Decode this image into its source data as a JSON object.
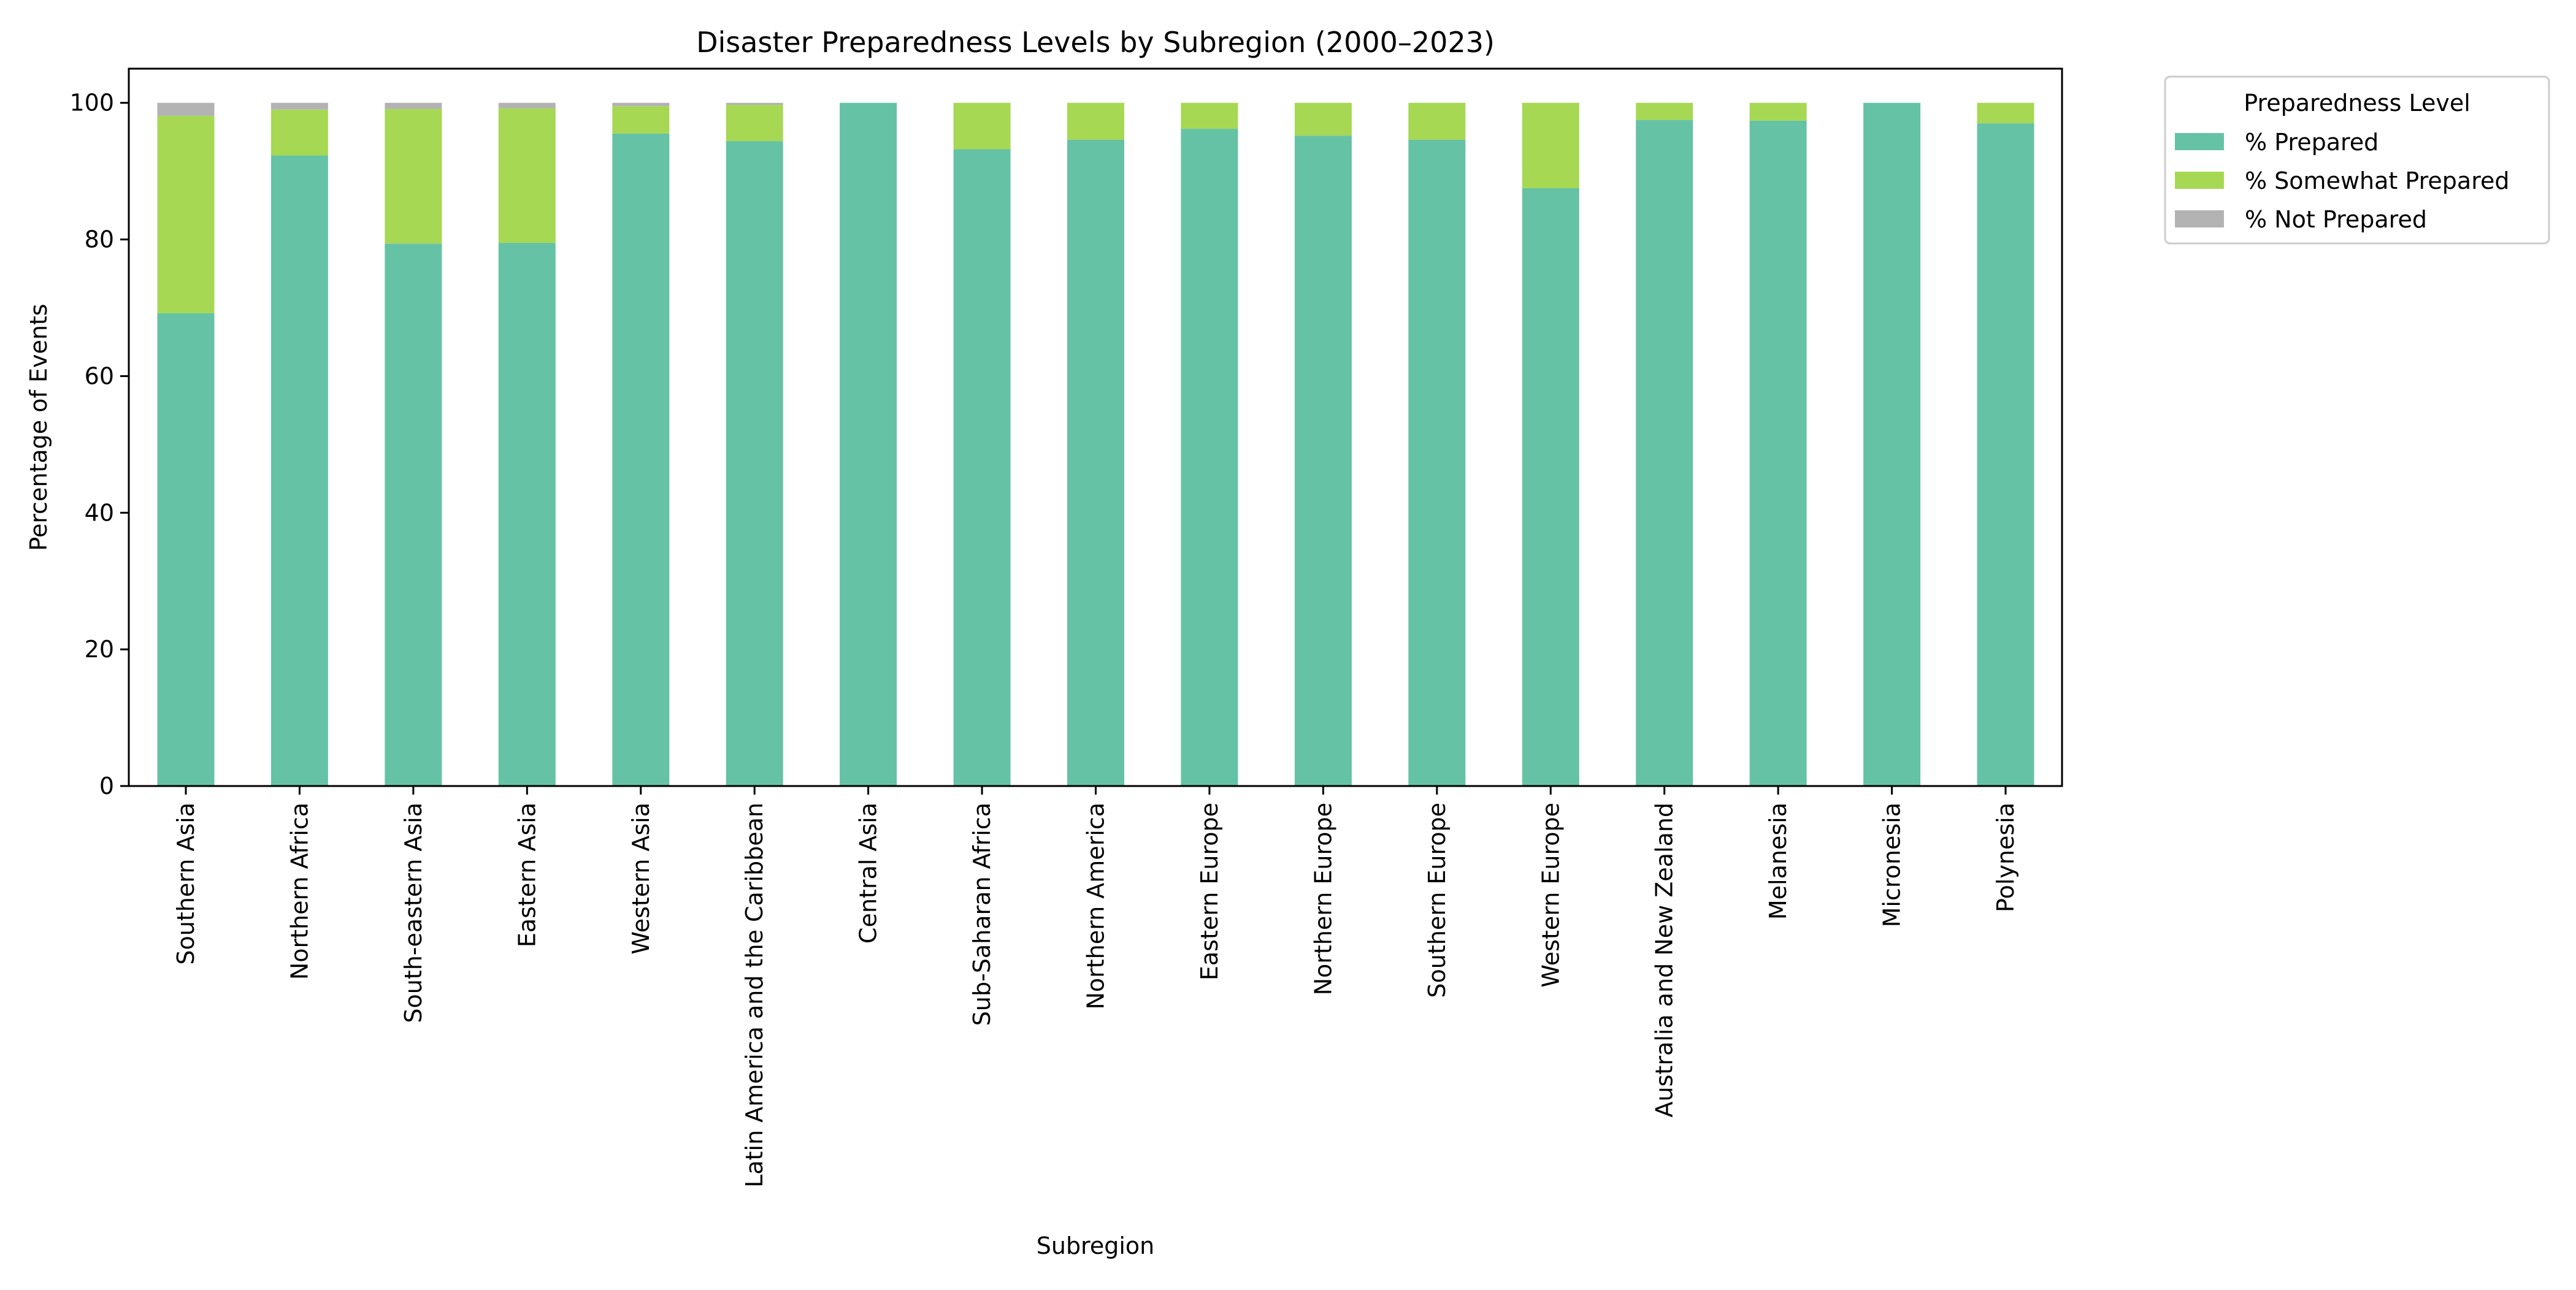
{
  "chart_data": {
    "type": "bar",
    "stacked": true,
    "title": "Disaster Preparedness Levels by Subregion (2000–2023)",
    "xlabel": "Subregion",
    "ylabel": "Percentage of Events",
    "ylim": [
      0,
      105
    ],
    "yticks": [
      0,
      20,
      40,
      60,
      80,
      100
    ],
    "grid": false,
    "legend": {
      "title": "Preparedness Level",
      "position": "outside-top-right"
    },
    "categories": [
      "Southern Asia",
      "Northern Africa",
      "South-eastern Asia",
      "Eastern Asia",
      "Western Asia",
      "Latin America and the Caribbean",
      "Central Asia",
      "Sub-Saharan Africa",
      "Northern America",
      "Eastern Europe",
      "Northern Europe",
      "Southern Europe",
      "Western Europe",
      "Australia and New Zealand",
      "Melanesia",
      "Micronesia",
      "Polynesia"
    ],
    "series": [
      {
        "name": "% Prepared",
        "color": "#66c2a5",
        "values": [
          69.2,
          92.3,
          79.4,
          79.5,
          95.5,
          94.4,
          100.0,
          93.2,
          94.6,
          96.2,
          95.2,
          94.6,
          87.5,
          97.5,
          97.4,
          100.0,
          97.0
        ]
      },
      {
        "name": "% Somewhat Prepared",
        "color": "#a6d854",
        "values": [
          28.9,
          6.7,
          19.7,
          19.7,
          4.0,
          5.3,
          0.0,
          6.8,
          5.4,
          3.8,
          4.8,
          5.4,
          12.5,
          2.5,
          2.6,
          0.0,
          3.0
        ]
      },
      {
        "name": "% Not Prepared",
        "color": "#b3b3b3",
        "values": [
          1.9,
          1.0,
          0.9,
          0.8,
          0.5,
          0.3,
          0.0,
          0.0,
          0.0,
          0.0,
          0.0,
          0.0,
          0.0,
          0.0,
          0.0,
          0.0,
          0.0
        ]
      }
    ]
  }
}
